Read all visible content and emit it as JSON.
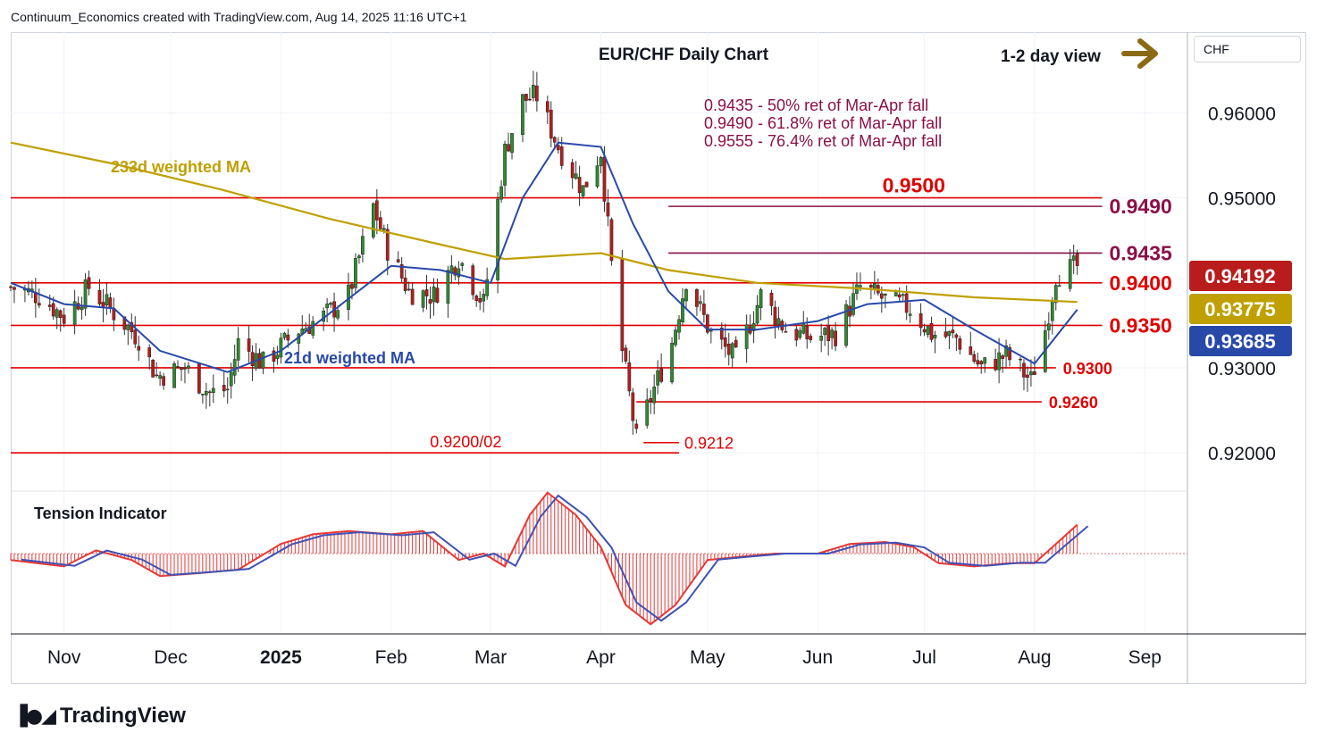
{
  "header": {
    "credit": "Continuum_Economics created with TradingView.com, Aug 14, 2025 11:16 UTC+1"
  },
  "chart_title": "EUR/CHF Daily Chart",
  "view_label": "1-2 day view",
  "currency": "CHF",
  "footer": {
    "brand": "TradingView"
  },
  "colors": {
    "bull": "#2e8b2e",
    "bear": "#b81c1c",
    "ma233": "#bfa000",
    "ma21": "#2849a8",
    "level": "#e00000",
    "retrace": "#8b1048",
    "arrow": "#8a6a14"
  },
  "chart_data": {
    "type": "candlestick",
    "title": "EUR/CHF Daily Chart",
    "ylim": [
      0.9155,
      0.9695
    ],
    "y_ticks": [
      0.92,
      0.93,
      0.95,
      0.96
    ],
    "y_tick_labels": [
      "0.92000",
      "0.93000",
      "0.95000",
      "0.96000"
    ],
    "x_range": [
      "2024-10-17",
      "2025-09-13"
    ],
    "x_ticks": [
      {
        "date": "2024-11-01",
        "label": "Nov"
      },
      {
        "date": "2024-12-01",
        "label": "Dec"
      },
      {
        "date": "2025-01-01",
        "label": "2025"
      },
      {
        "date": "2025-02-01",
        "label": "Feb"
      },
      {
        "date": "2025-03-01",
        "label": "Mar"
      },
      {
        "date": "2025-04-01",
        "label": "Apr"
      },
      {
        "date": "2025-05-01",
        "label": "May"
      },
      {
        "date": "2025-06-01",
        "label": "Jun"
      },
      {
        "date": "2025-07-01",
        "label": "Jul"
      },
      {
        "date": "2025-08-01",
        "label": "Aug"
      },
      {
        "date": "2025-09-01",
        "label": "Sep"
      }
    ],
    "close_path": [
      [
        "2024-10-17",
        0.9395
      ],
      [
        "2024-10-25",
        0.9385
      ],
      [
        "2024-11-01",
        0.936
      ],
      [
        "2024-11-08",
        0.9395
      ],
      [
        "2024-11-15",
        0.9365
      ],
      [
        "2024-11-22",
        0.9335
      ],
      [
        "2024-11-27",
        0.929
      ],
      [
        "2024-12-05",
        0.93
      ],
      [
        "2024-12-12",
        0.927
      ],
      [
        "2024-12-17",
        0.9275
      ],
      [
        "2024-12-20",
        0.933
      ],
      [
        "2024-12-27",
        0.9305
      ],
      [
        "2025-01-06",
        0.9345
      ],
      [
        "2025-01-13",
        0.936
      ],
      [
        "2025-01-20",
        0.9385
      ],
      [
        "2025-01-27",
        0.949
      ],
      [
        "2025-01-31",
        0.944
      ],
      [
        "2025-02-06",
        0.939
      ],
      [
        "2025-02-13",
        0.9385
      ],
      [
        "2025-02-20",
        0.943
      ],
      [
        "2025-02-27",
        0.9375
      ],
      [
        "2025-03-05",
        0.9555
      ],
      [
        "2025-03-10",
        0.9615
      ],
      [
        "2025-03-14",
        0.962
      ],
      [
        "2025-03-20",
        0.956
      ],
      [
        "2025-03-27",
        0.951
      ],
      [
        "2025-04-01",
        0.9555
      ],
      [
        "2025-04-04",
        0.942
      ],
      [
        "2025-04-07",
        0.932
      ],
      [
        "2025-04-11",
        0.9215
      ],
      [
        "2025-04-15",
        0.9265
      ],
      [
        "2025-04-21",
        0.933
      ],
      [
        "2025-04-25",
        0.9405
      ],
      [
        "2025-05-02",
        0.934
      ],
      [
        "2025-05-09",
        0.931
      ],
      [
        "2025-05-16",
        0.9385
      ],
      [
        "2025-05-23",
        0.9345
      ],
      [
        "2025-05-30",
        0.9335
      ],
      [
        "2025-06-06",
        0.934
      ],
      [
        "2025-06-13",
        0.9395
      ],
      [
        "2025-06-20",
        0.938
      ],
      [
        "2025-06-27",
        0.937
      ],
      [
        "2025-07-03",
        0.934
      ],
      [
        "2025-07-10",
        0.9335
      ],
      [
        "2025-07-17",
        0.93
      ],
      [
        "2025-07-24",
        0.9315
      ],
      [
        "2025-07-31",
        0.9285
      ],
      [
        "2025-08-04",
        0.9345
      ],
      [
        "2025-08-07",
        0.941
      ],
      [
        "2025-08-13",
        0.9419
      ]
    ],
    "ma233_path": [
      [
        "2024-10-17",
        0.9565
      ],
      [
        "2024-11-15",
        0.954
      ],
      [
        "2024-12-15",
        0.951
      ],
      [
        "2025-01-15",
        0.9475
      ],
      [
        "2025-02-15",
        0.9445
      ],
      [
        "2025-03-05",
        0.9428
      ],
      [
        "2025-04-01",
        0.9435
      ],
      [
        "2025-04-20",
        0.9415
      ],
      [
        "2025-05-15",
        0.94
      ],
      [
        "2025-06-15",
        0.9393
      ],
      [
        "2025-07-15",
        0.9383
      ],
      [
        "2025-08-13",
        0.93775
      ]
    ],
    "ma21_path": [
      [
        "2024-10-17",
        0.94
      ],
      [
        "2024-11-01",
        0.9375
      ],
      [
        "2024-11-15",
        0.937
      ],
      [
        "2024-11-28",
        0.932
      ],
      [
        "2024-12-17",
        0.9295
      ],
      [
        "2025-01-01",
        0.932
      ],
      [
        "2025-01-15",
        0.9365
      ],
      [
        "2025-02-01",
        0.942
      ],
      [
        "2025-02-15",
        0.9415
      ],
      [
        "2025-03-01",
        0.94
      ],
      [
        "2025-03-10",
        0.95
      ],
      [
        "2025-03-20",
        0.9565
      ],
      [
        "2025-04-01",
        0.956
      ],
      [
        "2025-04-10",
        0.947
      ],
      [
        "2025-04-20",
        0.939
      ],
      [
        "2025-05-01",
        0.9345
      ],
      [
        "2025-05-15",
        0.9345
      ],
      [
        "2025-06-01",
        0.9355
      ],
      [
        "2025-06-15",
        0.9375
      ],
      [
        "2025-07-01",
        0.938
      ],
      [
        "2025-07-15",
        0.9345
      ],
      [
        "2025-08-01",
        0.9305
      ],
      [
        "2025-08-13",
        0.93685
      ]
    ],
    "last_values": [
      {
        "label": "0.94192",
        "value": 0.94192,
        "color": "#b81c1c"
      },
      {
        "label": "0.93775",
        "value": 0.93775,
        "color": "#bfa000"
      },
      {
        "label": "0.93685",
        "value": 0.93685,
        "color": "#2849a8"
      }
    ],
    "levels": [
      {
        "label": "0.9500",
        "value": 0.95,
        "from": "2024-10-17",
        "to": "2025-08-20"
      },
      {
        "label": "0.9490",
        "value": 0.949,
        "from": "2025-04-20",
        "to": "2025-08-20"
      },
      {
        "label": "0.9435",
        "value": 0.9435,
        "from": "2025-04-20",
        "to": "2025-08-20"
      },
      {
        "label": "0.9400",
        "value": 0.94,
        "from": "2024-10-17",
        "to": "2025-08-20"
      },
      {
        "label": "0.9350",
        "value": 0.935,
        "from": "2024-10-17",
        "to": "2025-08-20"
      },
      {
        "label": "0.9300",
        "value": 0.93,
        "from": "2024-10-17",
        "to": "2025-08-07"
      },
      {
        "label": "0.9260",
        "value": 0.926,
        "from": "2025-04-11",
        "to": "2025-08-03"
      },
      {
        "label": "0.9212",
        "value": 0.9212,
        "from": "2025-04-13",
        "to": "2025-04-23"
      },
      {
        "label": "0.9200/02",
        "value": 0.92,
        "from": "2024-10-17",
        "to": "2025-04-23"
      }
    ],
    "annotations": [
      "0.9435 - 50% ret of Mar-Apr fall",
      "0.9490 - 61.8% ret of Mar-Apr fall",
      "0.9555 - 76.4% ret of Mar-Apr fall"
    ],
    "ma_labels": {
      "ma233": "233d weighted MA",
      "ma21": "21d weighted MA"
    },
    "indicator": {
      "title": "Tension Indicator",
      "path": [
        [
          "2024-10-17",
          -0.1
        ],
        [
          "2024-11-01",
          -0.2
        ],
        [
          "2024-11-10",
          0.05
        ],
        [
          "2024-11-20",
          -0.1
        ],
        [
          "2024-11-28",
          -0.35
        ],
        [
          "2024-12-10",
          -0.3
        ],
        [
          "2024-12-20",
          -0.25
        ],
        [
          "2025-01-01",
          0.15
        ],
        [
          "2025-01-10",
          0.3
        ],
        [
          "2025-01-20",
          0.35
        ],
        [
          "2025-02-01",
          0.3
        ],
        [
          "2025-02-10",
          0.35
        ],
        [
          "2025-02-20",
          -0.1
        ],
        [
          "2025-02-27",
          0.0
        ],
        [
          "2025-03-05",
          -0.2
        ],
        [
          "2025-03-12",
          0.6
        ],
        [
          "2025-03-17",
          0.95
        ],
        [
          "2025-03-25",
          0.6
        ],
        [
          "2025-04-01",
          0.1
        ],
        [
          "2025-04-08",
          -0.8
        ],
        [
          "2025-04-15",
          -1.1
        ],
        [
          "2025-04-22",
          -0.8
        ],
        [
          "2025-05-01",
          -0.1
        ],
        [
          "2025-05-10",
          -0.05
        ],
        [
          "2025-05-20",
          0.0
        ],
        [
          "2025-06-01",
          0.0
        ],
        [
          "2025-06-10",
          0.15
        ],
        [
          "2025-06-20",
          0.18
        ],
        [
          "2025-06-28",
          0.1
        ],
        [
          "2025-07-05",
          -0.15
        ],
        [
          "2025-07-15",
          -0.2
        ],
        [
          "2025-07-25",
          -0.15
        ],
        [
          "2025-08-01",
          -0.15
        ],
        [
          "2025-08-08",
          0.2
        ],
        [
          "2025-08-13",
          0.45
        ]
      ]
    },
    "grid": true,
    "legend": "none"
  }
}
